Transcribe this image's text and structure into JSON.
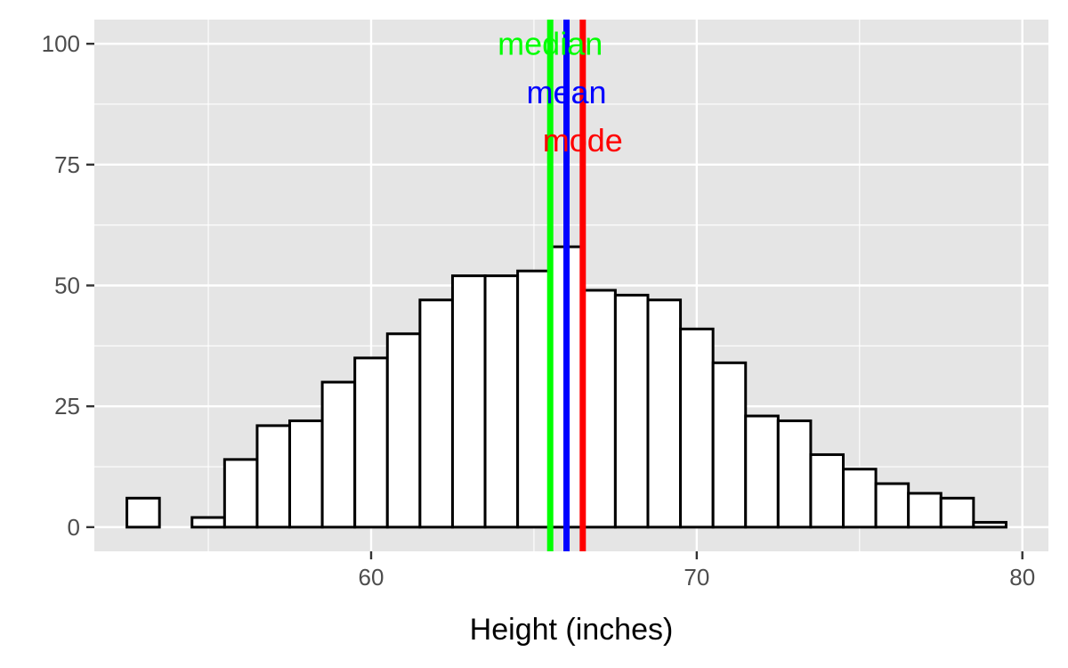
{
  "chart_data": {
    "type": "bar",
    "xlabel": "Height (inches)",
    "ylabel": "",
    "xlim": [
      51.5,
      80.8
    ],
    "ylim": [
      -5,
      105
    ],
    "x_ticks": [
      60,
      70,
      80
    ],
    "y_ticks": [
      0,
      25,
      50,
      75,
      100
    ],
    "grid": true,
    "panel_background": "#e5e5e5",
    "bar_fill": "#ffffff",
    "bar_outline": "#000000",
    "bins": [
      {
        "x0": 52.5,
        "x1": 53.5,
        "count": 6
      },
      {
        "x0": 53.5,
        "x1": 54.5,
        "count": 0
      },
      {
        "x0": 54.5,
        "x1": 55.5,
        "count": 2
      },
      {
        "x0": 55.5,
        "x1": 56.5,
        "count": 14
      },
      {
        "x0": 56.5,
        "x1": 57.5,
        "count": 21
      },
      {
        "x0": 57.5,
        "x1": 58.5,
        "count": 22
      },
      {
        "x0": 58.5,
        "x1": 59.5,
        "count": 30
      },
      {
        "x0": 59.5,
        "x1": 60.5,
        "count": 35
      },
      {
        "x0": 60.5,
        "x1": 61.5,
        "count": 40
      },
      {
        "x0": 61.5,
        "x1": 62.5,
        "count": 47
      },
      {
        "x0": 62.5,
        "x1": 63.5,
        "count": 52
      },
      {
        "x0": 63.5,
        "x1": 64.5,
        "count": 52
      },
      {
        "x0": 64.5,
        "x1": 65.5,
        "count": 53
      },
      {
        "x0": 65.5,
        "x1": 66.5,
        "count": 58
      },
      {
        "x0": 66.5,
        "x1": 67.5,
        "count": 49
      },
      {
        "x0": 67.5,
        "x1": 68.5,
        "count": 48
      },
      {
        "x0": 68.5,
        "x1": 69.5,
        "count": 47
      },
      {
        "x0": 69.5,
        "x1": 70.5,
        "count": 41
      },
      {
        "x0": 70.5,
        "x1": 71.5,
        "count": 34
      },
      {
        "x0": 71.5,
        "x1": 72.5,
        "count": 23
      },
      {
        "x0": 72.5,
        "x1": 73.5,
        "count": 22
      },
      {
        "x0": 73.5,
        "x1": 74.5,
        "count": 15
      },
      {
        "x0": 74.5,
        "x1": 75.5,
        "count": 12
      },
      {
        "x0": 75.5,
        "x1": 76.5,
        "count": 9
      },
      {
        "x0": 76.5,
        "x1": 77.5,
        "count": 7
      },
      {
        "x0": 77.5,
        "x1": 78.5,
        "count": 6
      },
      {
        "x0": 78.5,
        "x1": 79.5,
        "count": 1
      }
    ],
    "reference_lines": [
      {
        "label": "median",
        "value": 65.5,
        "color": "#00ff00",
        "label_y": 100
      },
      {
        "label": "mean",
        "value": 66.0,
        "color": "#0000ff",
        "label_y": 90
      },
      {
        "label": "mode",
        "value": 66.5,
        "color": "#ff0000",
        "label_y": 80
      }
    ]
  }
}
